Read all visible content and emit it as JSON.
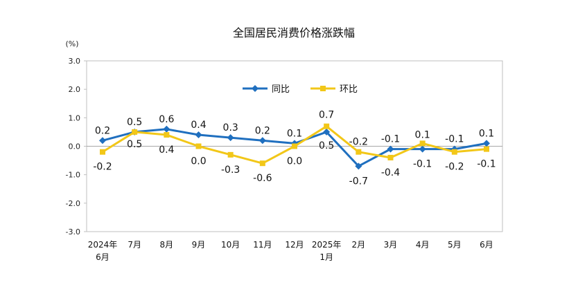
{
  "chart_data": {
    "type": "line",
    "title": "全国居民消费价格涨跌幅",
    "unit_label": "(%)",
    "ylim": [
      -3.0,
      3.0
    ],
    "yticks": [
      "3.0",
      "2.0",
      "1.0",
      "0.0",
      "-1.0",
      "-2.0",
      "-3.0"
    ],
    "categories": [
      [
        "2024年",
        "6月"
      ],
      [
        "7月"
      ],
      [
        "8月"
      ],
      [
        "9月"
      ],
      [
        "10月"
      ],
      [
        "11月"
      ],
      [
        "12月"
      ],
      [
        "2025年",
        "1月"
      ],
      [
        "2月"
      ],
      [
        "3月"
      ],
      [
        "4月"
      ],
      [
        "5月"
      ],
      [
        "6月"
      ]
    ],
    "grid": false,
    "legend_position": "top-center",
    "series": [
      {
        "name": "同比",
        "color": "#1f6fbf",
        "marker": "diamond",
        "values": [
          0.2,
          0.5,
          0.6,
          0.4,
          0.3,
          0.2,
          0.1,
          0.5,
          -0.7,
          -0.1,
          -0.1,
          -0.1,
          0.1
        ],
        "labels": [
          "0.2",
          "0.5",
          "0.6",
          "0.4",
          "0.3",
          "0.2",
          "0.1",
          "0.5",
          "-0.7",
          "-0.1",
          "-0.1",
          "-0.1",
          "0.1"
        ]
      },
      {
        "name": "环比",
        "color": "#f2c718",
        "marker": "square",
        "values": [
          -0.2,
          0.5,
          0.4,
          0.0,
          -0.3,
          -0.6,
          0.0,
          0.7,
          -0.2,
          -0.4,
          0.1,
          -0.2,
          -0.1
        ],
        "labels": [
          "-0.2",
          "0.5",
          "0.4",
          "0.0",
          "-0.3",
          "-0.6",
          "0.0",
          "0.7",
          "-0.2",
          "-0.4",
          "0.1",
          "-0.2",
          "-0.1"
        ]
      }
    ]
  }
}
